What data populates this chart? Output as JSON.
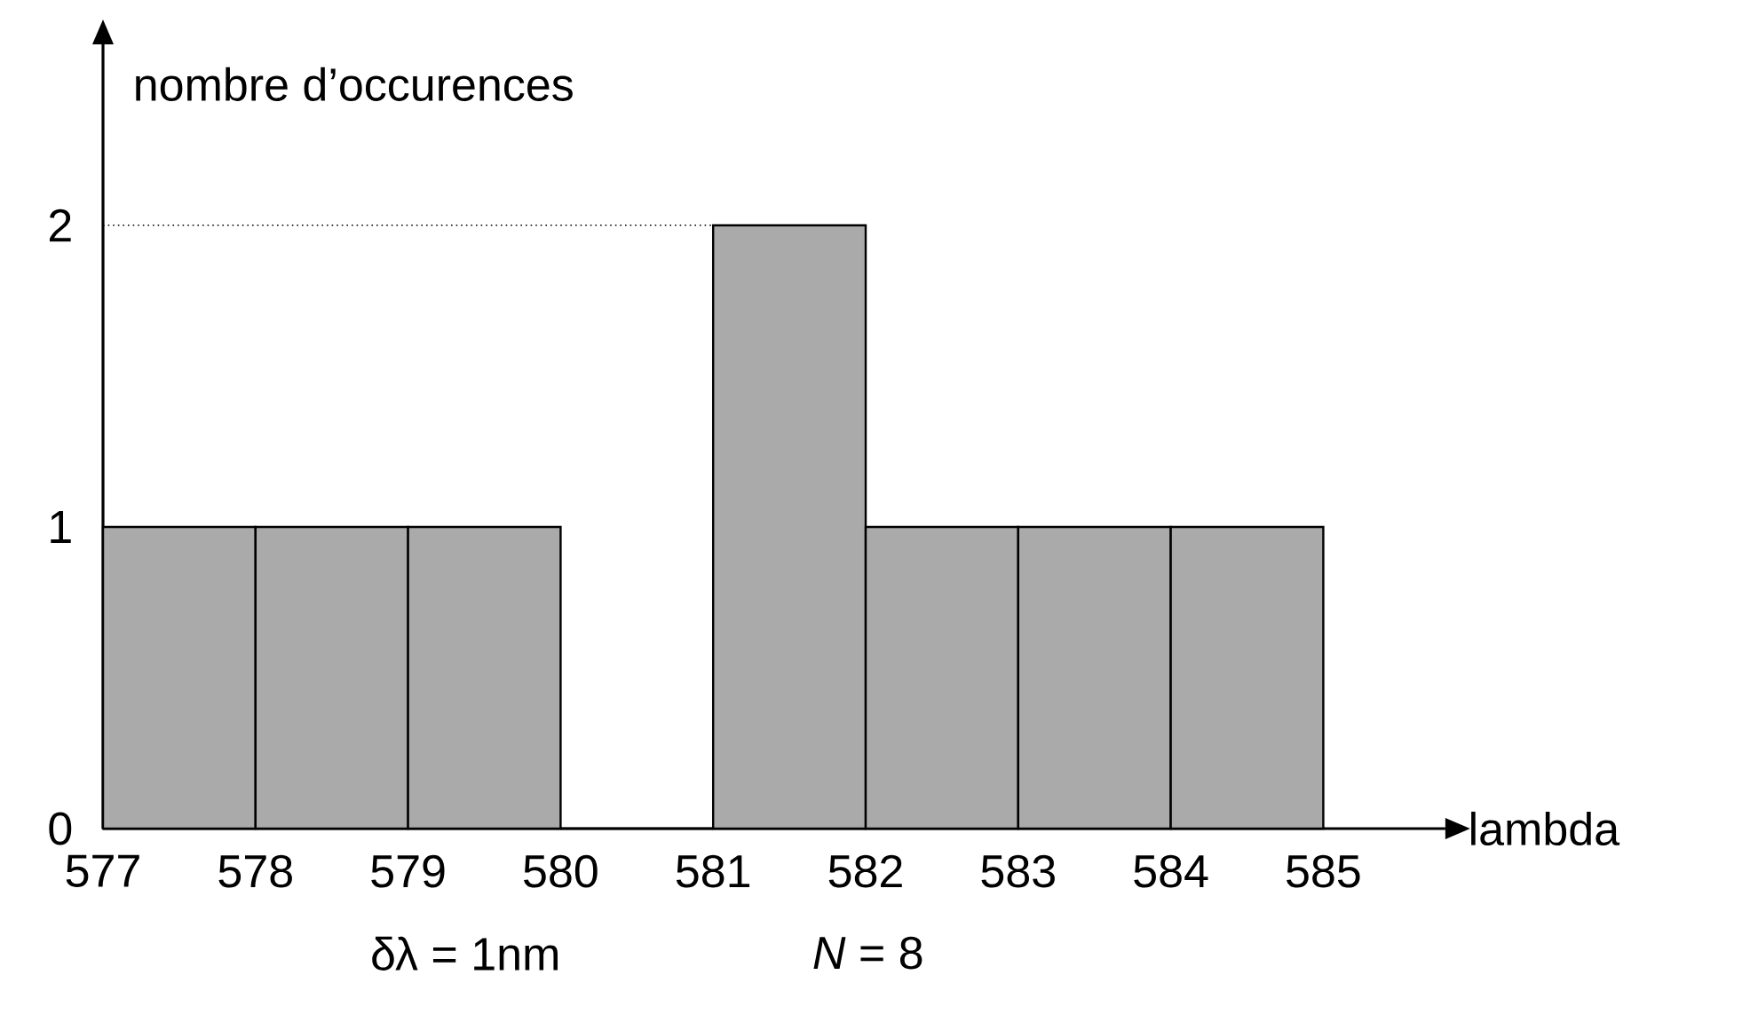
{
  "chart_data": {
    "type": "histogram",
    "bins": [
      577,
      578,
      579,
      580,
      581,
      582,
      583,
      584,
      585
    ],
    "values": [
      1,
      1,
      1,
      0,
      2,
      1,
      1,
      1
    ],
    "color": "#aaaaaa",
    "xlabel": "lambda",
    "ylabel": "nombre d’occurences",
    "xlim": [
      577,
      585.8
    ],
    "ylim": [
      0,
      2.6
    ],
    "xticks": [
      577,
      578,
      579,
      580,
      581,
      582,
      583,
      584,
      585
    ],
    "yticks": [
      0,
      1,
      2
    ],
    "ref_lines": [
      {
        "axis": "y",
        "value": 2,
        "line_style": "dotted"
      }
    ],
    "annotations": [
      "δλ = 1nm",
      "*N* = 8"
    ]
  }
}
